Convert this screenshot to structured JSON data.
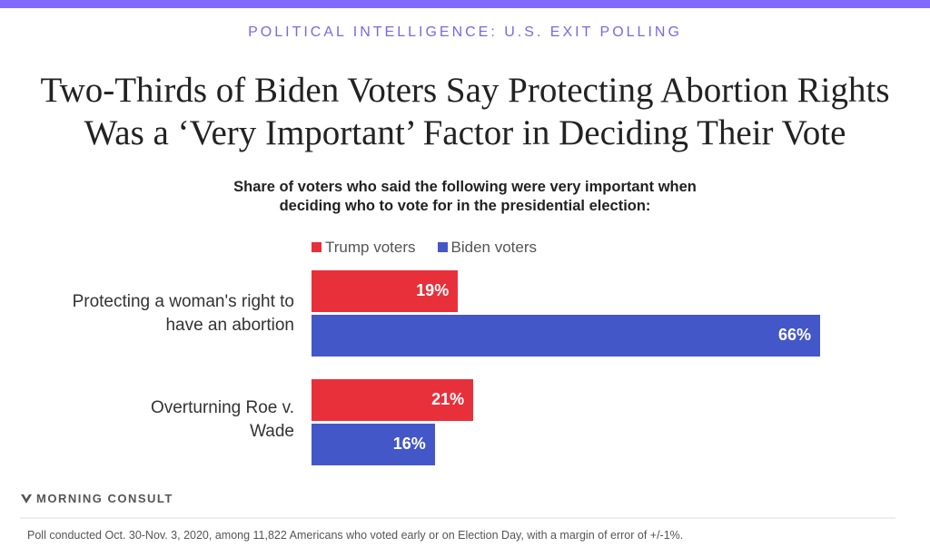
{
  "header": {
    "kicker": "POLITICAL INTELLIGENCE: U.S. EXIT POLLING",
    "accent_color": "#8169ff"
  },
  "chart_data": {
    "type": "bar",
    "orientation": "horizontal",
    "title": "Two-Thirds of Biden Voters Say Protecting Abortion Rights Was a ‘Very Important’ Factor in Deciding Their Vote",
    "subtitle": "Share of voters who said the following were very important when deciding who to vote for in the presidential election:",
    "categories": [
      "Protecting a woman's right to have an abortion",
      "Overturning Roe v. Wade"
    ],
    "series": [
      {
        "name": "Trump voters",
        "color": "#e8303a",
        "values": [
          19,
          21
        ],
        "labels": [
          "19%",
          "21%"
        ]
      },
      {
        "name": "Biden voters",
        "color": "#4457c9",
        "values": [
          66,
          16
        ],
        "labels": [
          "66%",
          "16%"
        ]
      }
    ],
    "xlim": [
      0,
      100
    ],
    "grid": false,
    "legend": "top"
  },
  "footer": {
    "brand": "MORNING CONSULT",
    "note": "Poll conducted Oct. 30-Nov. 3, 2020, among 11,822 Americans who voted early or on Election Day, with a margin of error of +/-1%."
  }
}
